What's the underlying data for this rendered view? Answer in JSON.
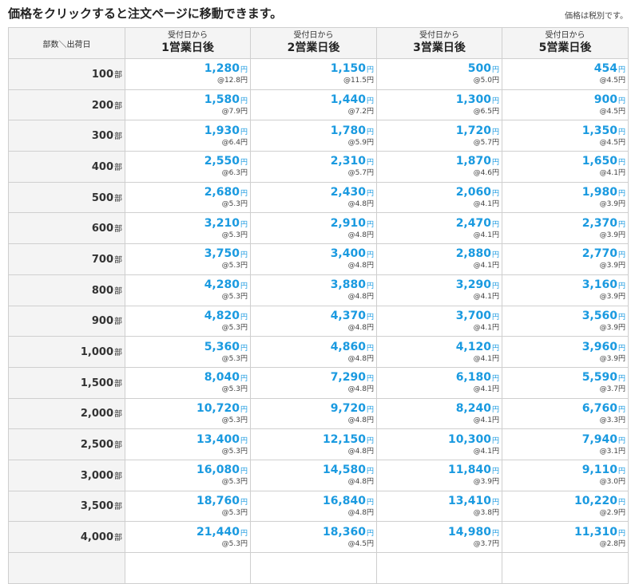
{
  "header": {
    "title": "価格をクリックすると注文ページに移動できます。",
    "tax_note": "価格は税別です。"
  },
  "table": {
    "corner_label": "部数＼出荷日",
    "columns": [
      {
        "small": "受付日から",
        "big": "1営業日後"
      },
      {
        "small": "受付日から",
        "big": "2営業日後"
      },
      {
        "small": "受付日から",
        "big": "3営業日後"
      },
      {
        "small": "受付日から",
        "big": "5営業日後"
      }
    ],
    "qty_unit": "部",
    "yen": "円",
    "rows": [
      {
        "qty": "100",
        "cells": [
          {
            "price": "1,280",
            "per": "@12.8円"
          },
          {
            "price": "1,150",
            "per": "@11.5円"
          },
          {
            "price": "500",
            "per": "@5.0円"
          },
          {
            "price": "454",
            "per": "@4.5円"
          }
        ]
      },
      {
        "qty": "200",
        "cells": [
          {
            "price": "1,580",
            "per": "@7.9円"
          },
          {
            "price": "1,440",
            "per": "@7.2円"
          },
          {
            "price": "1,300",
            "per": "@6.5円"
          },
          {
            "price": "900",
            "per": "@4.5円"
          }
        ]
      },
      {
        "qty": "300",
        "cells": [
          {
            "price": "1,930",
            "per": "@6.4円"
          },
          {
            "price": "1,780",
            "per": "@5.9円"
          },
          {
            "price": "1,720",
            "per": "@5.7円"
          },
          {
            "price": "1,350",
            "per": "@4.5円"
          }
        ]
      },
      {
        "qty": "400",
        "cells": [
          {
            "price": "2,550",
            "per": "@6.3円"
          },
          {
            "price": "2,310",
            "per": "@5.7円"
          },
          {
            "price": "1,870",
            "per": "@4.6円"
          },
          {
            "price": "1,650",
            "per": "@4.1円"
          }
        ]
      },
      {
        "qty": "500",
        "cells": [
          {
            "price": "2,680",
            "per": "@5.3円"
          },
          {
            "price": "2,430",
            "per": "@4.8円"
          },
          {
            "price": "2,060",
            "per": "@4.1円"
          },
          {
            "price": "1,980",
            "per": "@3.9円"
          }
        ]
      },
      {
        "qty": "600",
        "cells": [
          {
            "price": "3,210",
            "per": "@5.3円"
          },
          {
            "price": "2,910",
            "per": "@4.8円"
          },
          {
            "price": "2,470",
            "per": "@4.1円"
          },
          {
            "price": "2,370",
            "per": "@3.9円"
          }
        ]
      },
      {
        "qty": "700",
        "cells": [
          {
            "price": "3,750",
            "per": "@5.3円"
          },
          {
            "price": "3,400",
            "per": "@4.8円"
          },
          {
            "price": "2,880",
            "per": "@4.1円"
          },
          {
            "price": "2,770",
            "per": "@3.9円"
          }
        ]
      },
      {
        "qty": "800",
        "cells": [
          {
            "price": "4,280",
            "per": "@5.3円"
          },
          {
            "price": "3,880",
            "per": "@4.8円"
          },
          {
            "price": "3,290",
            "per": "@4.1円"
          },
          {
            "price": "3,160",
            "per": "@3.9円"
          }
        ]
      },
      {
        "qty": "900",
        "cells": [
          {
            "price": "4,820",
            "per": "@5.3円"
          },
          {
            "price": "4,370",
            "per": "@4.8円"
          },
          {
            "price": "3,700",
            "per": "@4.1円"
          },
          {
            "price": "3,560",
            "per": "@3.9円"
          }
        ]
      },
      {
        "qty": "1,000",
        "cells": [
          {
            "price": "5,360",
            "per": "@5.3円"
          },
          {
            "price": "4,860",
            "per": "@4.8円"
          },
          {
            "price": "4,120",
            "per": "@4.1円"
          },
          {
            "price": "3,960",
            "per": "@3.9円"
          }
        ]
      },
      {
        "qty": "1,500",
        "cells": [
          {
            "price": "8,040",
            "per": "@5.3円"
          },
          {
            "price": "7,290",
            "per": "@4.8円"
          },
          {
            "price": "6,180",
            "per": "@4.1円"
          },
          {
            "price": "5,590",
            "per": "@3.7円"
          }
        ]
      },
      {
        "qty": "2,000",
        "cells": [
          {
            "price": "10,720",
            "per": "@5.3円"
          },
          {
            "price": "9,720",
            "per": "@4.8円"
          },
          {
            "price": "8,240",
            "per": "@4.1円"
          },
          {
            "price": "6,760",
            "per": "@3.3円"
          }
        ]
      },
      {
        "qty": "2,500",
        "cells": [
          {
            "price": "13,400",
            "per": "@5.3円"
          },
          {
            "price": "12,150",
            "per": "@4.8円"
          },
          {
            "price": "10,300",
            "per": "@4.1円"
          },
          {
            "price": "7,940",
            "per": "@3.1円"
          }
        ]
      },
      {
        "qty": "3,000",
        "cells": [
          {
            "price": "16,080",
            "per": "@5.3円"
          },
          {
            "price": "14,580",
            "per": "@4.8円"
          },
          {
            "price": "11,840",
            "per": "@3.9円"
          },
          {
            "price": "9,110",
            "per": "@3.0円"
          }
        ]
      },
      {
        "qty": "3,500",
        "cells": [
          {
            "price": "18,760",
            "per": "@5.3円"
          },
          {
            "price": "16,840",
            "per": "@4.8円"
          },
          {
            "price": "13,410",
            "per": "@3.8円"
          },
          {
            "price": "10,220",
            "per": "@2.9円"
          }
        ]
      },
      {
        "qty": "4,000",
        "cells": [
          {
            "price": "21,440",
            "per": "@5.3円"
          },
          {
            "price": "18,360",
            "per": "@4.5円"
          },
          {
            "price": "14,980",
            "per": "@3.7円"
          },
          {
            "price": "11,310",
            "per": "@2.8円"
          }
        ]
      },
      {
        "qty": "",
        "cells": [
          {
            "price": "",
            "per": ""
          },
          {
            "price": "",
            "per": ""
          },
          {
            "price": "",
            "per": ""
          },
          {
            "price": "",
            "per": ""
          }
        ]
      }
    ]
  },
  "colors": {
    "price": "#1a9ae0",
    "header_bg": "#f4f4f4",
    "border": "#cfcfcf"
  }
}
